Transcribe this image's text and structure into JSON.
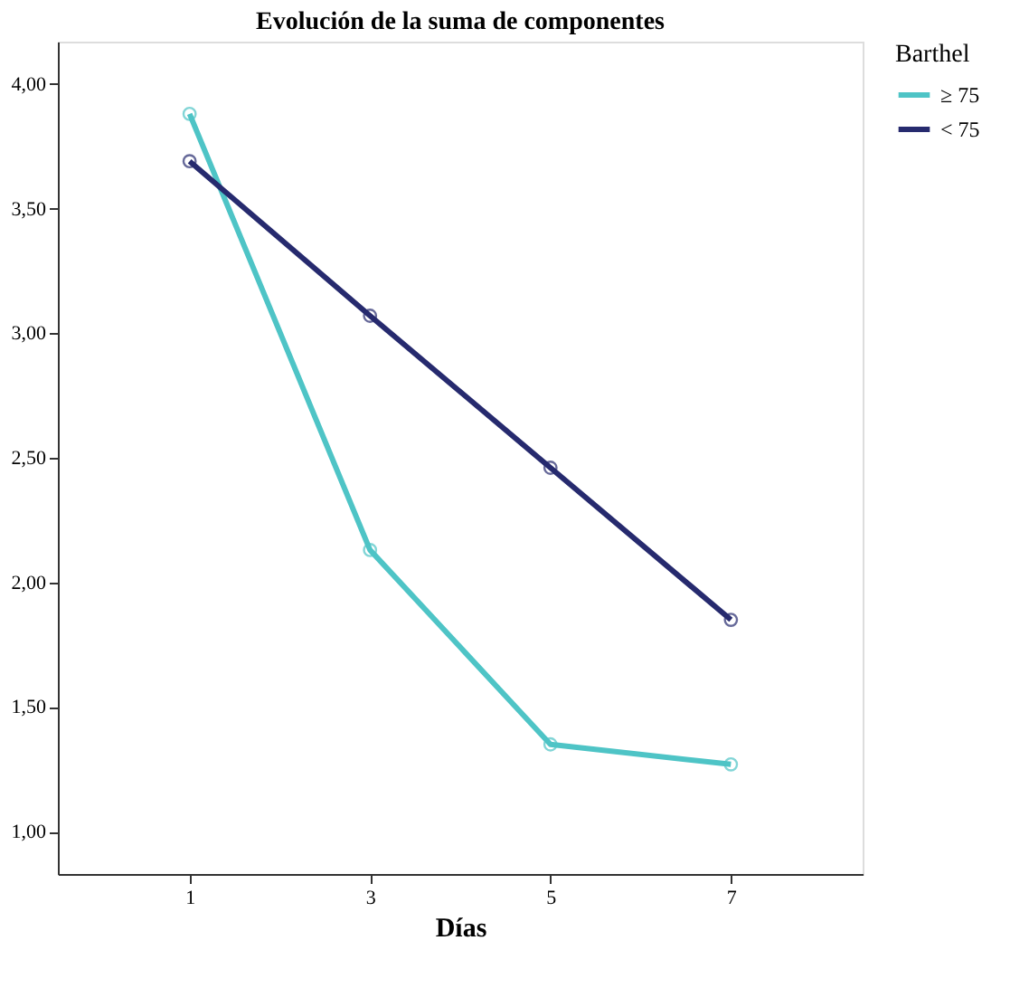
{
  "chart_data": {
    "type": "line",
    "title": "Evolución de la suma de componentes",
    "xlabel": "Días",
    "legend_title": "Barthel",
    "x": [
      1,
      3,
      5,
      7
    ],
    "series": [
      {
        "name": "≥ 75",
        "color": "#4ec4c6",
        "values": [
          3.88,
          2.13,
          1.35,
          1.27
        ]
      },
      {
        "name": "< 75",
        "color": "#262a6e",
        "values": [
          3.69,
          3.07,
          2.46,
          1.85
        ]
      }
    ],
    "xlim": [
      -0.46,
      8.46
    ],
    "xticks": [
      1,
      3,
      5,
      7
    ],
    "ylim": [
      0.83,
      4.17
    ],
    "yticks": [
      {
        "value": 1,
        "label": "1,00"
      },
      {
        "value": 1.5,
        "label": "1,50"
      },
      {
        "value": 2,
        "label": "2,00"
      },
      {
        "value": 2.5,
        "label": "2,50"
      },
      {
        "value": 3,
        "label": "3,00"
      },
      {
        "value": 3.5,
        "label": "3,50"
      },
      {
        "value": 4,
        "label": "4,00"
      }
    ],
    "grid": false,
    "legend": "top right",
    "marker": "circle",
    "line_style": "solid"
  }
}
